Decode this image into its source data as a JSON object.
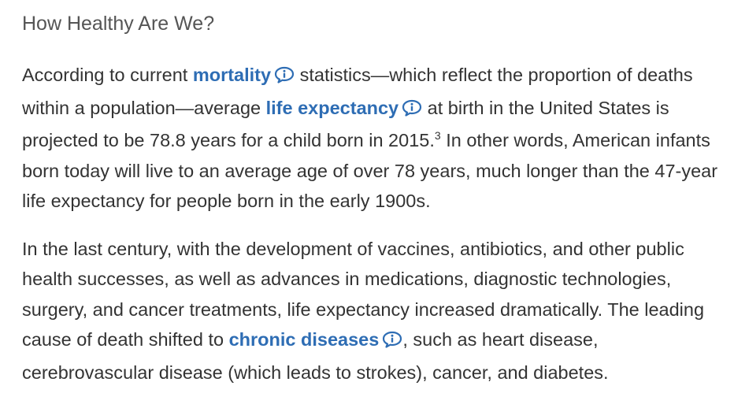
{
  "heading": "How Healthy Are We?",
  "paragraph1": {
    "t1": "According to current ",
    "term_mortality": "mortality",
    "t2": " statistics—which reflect the proportion of deaths within a population—average ",
    "term_life_expectancy": "life expectancy",
    "t3": " at birth in the United States is projected to be 78.8 years for a child born in 2015.",
    "footnote": "3",
    "t4": " In other words, American infants born today will live to an average age of over 78 years, much longer than the 47-year life expectancy for people born in the early 1900s."
  },
  "paragraph2": {
    "t1": "In the last century, with the development of vaccines, antibiotics, and other public health successes, as well as advances in medications, diagnostic technologies, surgery, and cancer treatments, life expectancy increased dramatically. The leading cause of death shifted to ",
    "term_chronic_diseases": "chronic diseases",
    "t2": ", such as heart disease, cerebrovascular disease (which leads to strokes), cancer, and diabetes."
  },
  "icons": {
    "glossary": "info-speech-bubble-icon"
  },
  "colors": {
    "link": "#2e6db4",
    "text": "#333333",
    "heading": "#555555"
  }
}
